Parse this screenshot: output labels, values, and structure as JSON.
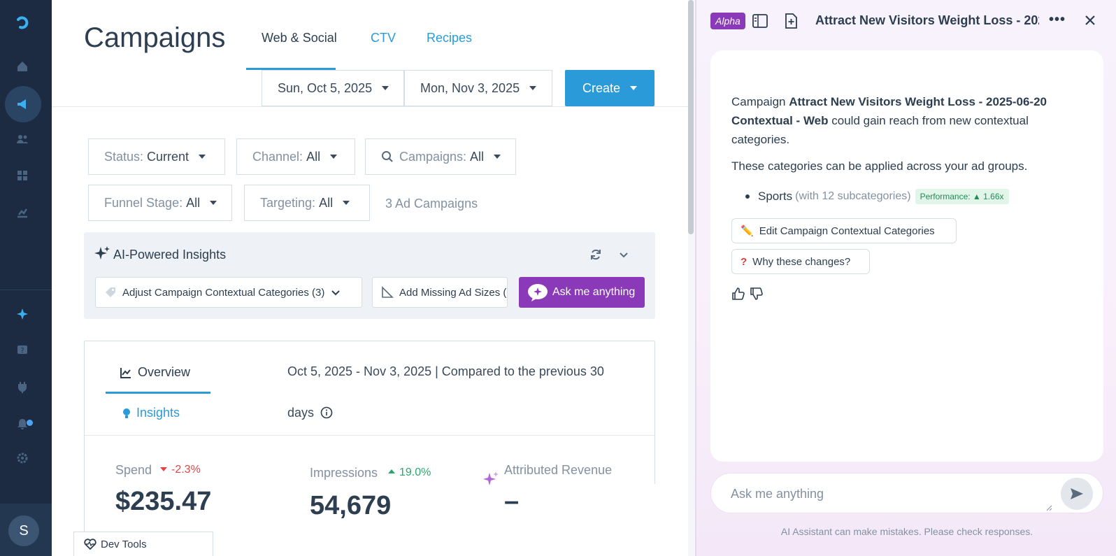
{
  "colors": {
    "nav_bg": "#1c2b41",
    "accent_blue": "#2a9bd8",
    "accent_purple": "#8a3ab9",
    "negative": "#e04646",
    "positive": "#2aa86a"
  },
  "nav": {
    "icons": [
      "logo-icon",
      "home-icon",
      "megaphone-icon",
      "users-icon",
      "grid-icon",
      "chart-icon",
      "sparkle-icon",
      "help-icon",
      "plug-icon",
      "bell-icon",
      "gear-icon"
    ],
    "avatar_initial": "S"
  },
  "header": {
    "title": "Campaigns",
    "tabs": [
      "Web & Social",
      "CTV",
      "Recipes"
    ],
    "start_date": "Sun, Oct 5, 2025",
    "end_date": "Mon, Nov 3, 2025",
    "create_label": "Create"
  },
  "filters": {
    "status": {
      "label": "Status:",
      "value": "Current"
    },
    "channel": {
      "label": "Channel:",
      "value": "All"
    },
    "campaigns": {
      "label": "Campaigns:",
      "value": "All"
    },
    "funnel": {
      "label": "Funnel Stage:",
      "value": "All"
    },
    "targeting": {
      "label": "Targeting:",
      "value": "All"
    },
    "count": "3 Ad Campaigns"
  },
  "insights": {
    "title": "AI-Powered Insights",
    "chip1": "Adjust Campaign Contextual Categories (3)",
    "chip2": "Add Missing Ad Sizes (",
    "ask_label": "Ask me anything"
  },
  "overview": {
    "tab_overview": "Overview",
    "tab_insights": "Insights",
    "range_text": "Oct 5, 2025 - Nov 3, 2025 | Compared to the previous 30 days",
    "spend": {
      "label": "Spend",
      "delta": "-2.3%",
      "value": "$235.47"
    },
    "impressions": {
      "label": "Impressions",
      "delta": "19.0%",
      "value": "54,679"
    },
    "revenue": {
      "label": "Attributed Revenue",
      "value": "–"
    }
  },
  "devtools_label": "Dev Tools",
  "assistant": {
    "badge": "Alpha",
    "title": "Attract New Visitors Weight Loss - 202",
    "more": "•••",
    "message_prefix": "Campaign ",
    "message_campaign": "Attract New Visitors Weight Loss - 2025-06-20 Contextual - Web",
    "message_suffix": " could gain reach from new contextual categories.",
    "message2": "These categories can be applied across your ad groups.",
    "category": "Sports",
    "category_sub": "(with 12 subcategories)",
    "performance": "Performance: ▲ 1.66x",
    "btn_edit": "Edit Campaign Contextual Categories",
    "btn_why": "Why these changes?",
    "input_placeholder": "Ask me anything",
    "disclaimer": "AI Assistant can make mistakes. Please check responses."
  }
}
